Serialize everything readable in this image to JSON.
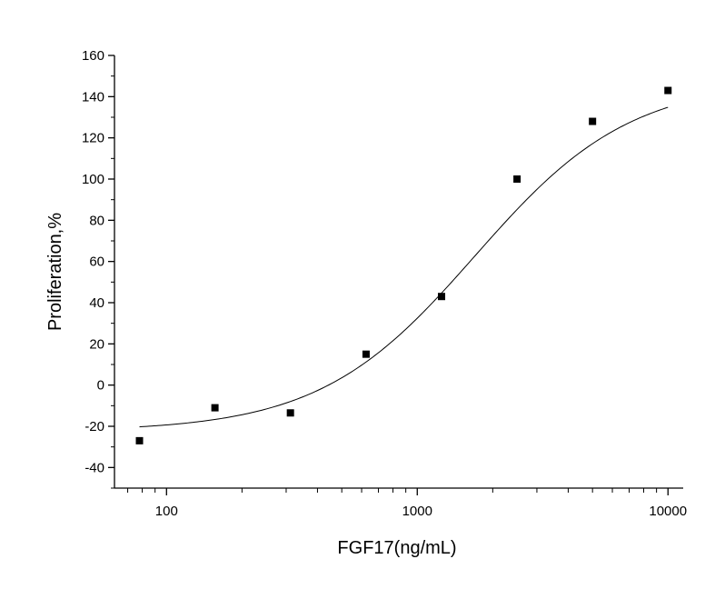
{
  "chart_data": {
    "type": "scatter",
    "title": "",
    "xlabel": "FGF17(ng/mL)",
    "ylabel": "Proliferation,%",
    "x_scale": "log",
    "xlim": [
      62,
      11500
    ],
    "ylim": [
      -50,
      160
    ],
    "x_ticks": [
      100,
      1000,
      10000
    ],
    "x_tick_labels": [
      "100",
      "1000",
      "10000"
    ],
    "y_ticks": [
      -40,
      -20,
      0,
      20,
      40,
      60,
      80,
      100,
      120,
      140,
      160
    ],
    "y_tick_labels": [
      "-40",
      "-20",
      "0",
      "20",
      "40",
      "60",
      "80",
      "100",
      "120",
      "140",
      "160"
    ],
    "grid": false,
    "legend": "none",
    "series": [
      {
        "kind": "points",
        "marker": "square",
        "color": "#000000",
        "x": [
          78,
          156,
          312,
          625,
          1250,
          2500,
          5000,
          10000
        ],
        "y": [
          -27,
          -11,
          -13.5,
          15,
          43,
          100,
          128,
          143
        ]
      },
      {
        "kind": "fit-curve",
        "color": "#000000",
        "model": "four-parameter-logistic",
        "bottom": -22.5,
        "top": 148,
        "ec50": 1700,
        "hill": 1.4,
        "x_range": [
          78,
          10000
        ]
      }
    ]
  }
}
